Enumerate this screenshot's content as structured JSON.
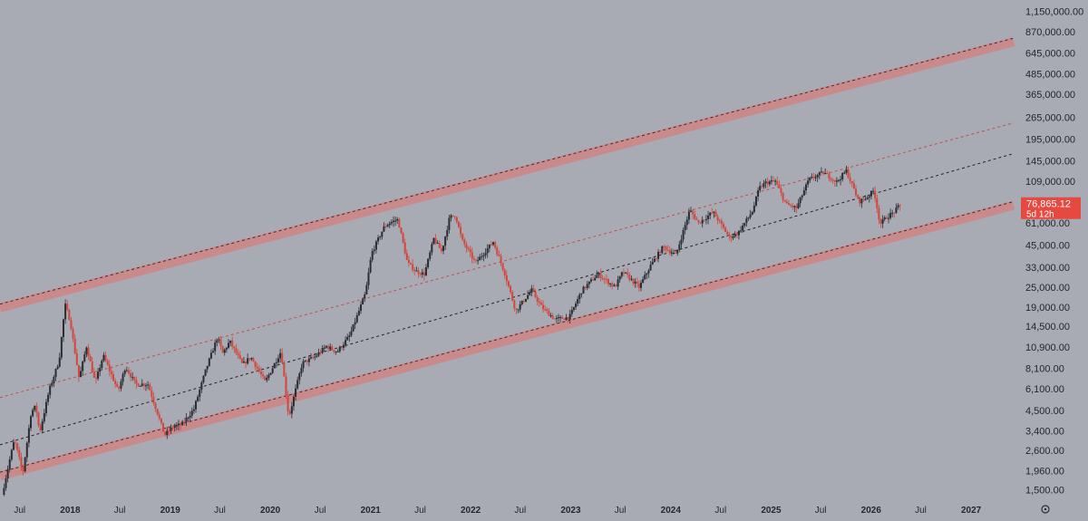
{
  "colors": {
    "background": "#a9abb4",
    "candle_up": "#2a2c33",
    "candle_down": "#d0473b",
    "band_fill": "#c98a8c",
    "band_dash": "#4a2a2a",
    "mid_red": "#c0504a",
    "mid_black": "#222222",
    "price_badge": "#e6493f"
  },
  "chart_data": {
    "type": "candlestick",
    "y_scale": "log",
    "ylim": [
      1400,
      1350000
    ],
    "x_range": [
      "2017-04-20",
      "2027-06-05"
    ],
    "y_ticks": [
      "1,150,000.00",
      "870,000.00",
      "645,000.00",
      "485,000.00",
      "365,000.00",
      "265,000.00",
      "195,000.00",
      "145,000.00",
      "109,000.00",
      "81,000.00",
      "61,000.00",
      "45,000.00",
      "33,000.00",
      "25,000.00",
      "19,000.00",
      "14,500.00",
      "10,900.00",
      "8,100.00",
      "6,100.00",
      "4,500.00",
      "3,400.00",
      "2,600.00",
      "1,960.00",
      "1,500.00"
    ],
    "x_ticks": [
      {
        "label": "Jul",
        "date": "2017-07-01",
        "year": false
      },
      {
        "label": "2018",
        "date": "2018-01-01",
        "year": true
      },
      {
        "label": "Jul",
        "date": "2018-07-01",
        "year": false
      },
      {
        "label": "2019",
        "date": "2019-01-01",
        "year": true
      },
      {
        "label": "Jul",
        "date": "2019-07-01",
        "year": false
      },
      {
        "label": "2020",
        "date": "2020-01-01",
        "year": true
      },
      {
        "label": "Jul",
        "date": "2020-07-01",
        "year": false
      },
      {
        "label": "2021",
        "date": "2021-01-01",
        "year": true
      },
      {
        "label": "Jul",
        "date": "2021-07-01",
        "year": false
      },
      {
        "label": "2022",
        "date": "2022-01-01",
        "year": true
      },
      {
        "label": "Jul",
        "date": "2022-07-01",
        "year": false
      },
      {
        "label": "2023",
        "date": "2023-01-01",
        "year": true
      },
      {
        "label": "Jul",
        "date": "2023-07-01",
        "year": false
      },
      {
        "label": "2024",
        "date": "2024-01-01",
        "year": true
      },
      {
        "label": "Jul",
        "date": "2024-07-01",
        "year": false
      },
      {
        "label": "2025",
        "date": "2025-01-01",
        "year": true
      },
      {
        "label": "Jul",
        "date": "2025-07-01",
        "year": false
      },
      {
        "label": "2026",
        "date": "2026-01-01",
        "year": true
      },
      {
        "label": "Jul",
        "date": "2026-07-01",
        "year": false
      },
      {
        "label": "2027",
        "date": "2027-01-01",
        "year": true
      }
    ],
    "price_path": [
      [
        "2017-05-01",
        1400
      ],
      [
        "2017-06-01",
        2400
      ],
      [
        "2017-06-15",
        3000
      ],
      [
        "2017-07-16",
        1900
      ],
      [
        "2017-08-15",
        4400
      ],
      [
        "2017-09-01",
        4800
      ],
      [
        "2017-09-15",
        3300
      ],
      [
        "2017-10-20",
        6000
      ],
      [
        "2017-11-25",
        9000
      ],
      [
        "2017-12-17",
        19700
      ],
      [
        "2018-01-05",
        15500
      ],
      [
        "2018-02-06",
        7000
      ],
      [
        "2018-03-05",
        11000
      ],
      [
        "2018-04-06",
        6600
      ],
      [
        "2018-05-05",
        9700
      ],
      [
        "2018-06-29",
        5900
      ],
      [
        "2018-07-25",
        8300
      ],
      [
        "2018-09-01",
        6500
      ],
      [
        "2018-10-15",
        6500
      ],
      [
        "2018-11-20",
        4300
      ],
      [
        "2018-12-15",
        3200
      ],
      [
        "2019-01-15",
        3600
      ],
      [
        "2019-02-15",
        3700
      ],
      [
        "2019-04-01",
        4600
      ],
      [
        "2019-05-15",
        8000
      ],
      [
        "2019-06-26",
        12500
      ],
      [
        "2019-07-15",
        10000
      ],
      [
        "2019-08-10",
        11800
      ],
      [
        "2019-09-25",
        8500
      ],
      [
        "2019-10-25",
        9500
      ],
      [
        "2019-12-17",
        6700
      ],
      [
        "2020-02-13",
        10300
      ],
      [
        "2020-03-12",
        4100
      ],
      [
        "2020-04-30",
        8700
      ],
      [
        "2020-06-15",
        9500
      ],
      [
        "2020-07-27",
        11000
      ],
      [
        "2020-09-05",
        10200
      ],
      [
        "2020-10-21",
        12800
      ],
      [
        "2020-12-17",
        23000
      ],
      [
        "2021-01-08",
        40000
      ],
      [
        "2021-02-21",
        57000
      ],
      [
        "2021-03-13",
        61000
      ],
      [
        "2021-04-14",
        64000
      ],
      [
        "2021-05-19",
        35000
      ],
      [
        "2021-06-22",
        31000
      ],
      [
        "2021-07-20",
        30000
      ],
      [
        "2021-08-23",
        49000
      ],
      [
        "2021-09-21",
        41000
      ],
      [
        "2021-10-20",
        66000
      ],
      [
        "2021-11-10",
        68000
      ],
      [
        "2021-12-04",
        48000
      ],
      [
        "2022-01-22",
        35000
      ],
      [
        "2022-03-28",
        47000
      ],
      [
        "2022-05-10",
        30000
      ],
      [
        "2022-06-18",
        18000
      ],
      [
        "2022-08-15",
        24000
      ],
      [
        "2022-09-20",
        19000
      ],
      [
        "2022-11-09",
        16000
      ],
      [
        "2022-12-31",
        16500
      ],
      [
        "2023-02-15",
        24000
      ],
      [
        "2023-04-14",
        30000
      ],
      [
        "2023-06-15",
        25000
      ],
      [
        "2023-07-14",
        31000
      ],
      [
        "2023-09-11",
        25000
      ],
      [
        "2023-10-24",
        34000
      ],
      [
        "2023-12-08",
        44000
      ],
      [
        "2024-01-23",
        39000
      ],
      [
        "2024-03-14",
        73000
      ],
      [
        "2024-04-15",
        61000
      ],
      [
        "2024-06-07",
        71000
      ],
      [
        "2024-08-05",
        50000
      ],
      [
        "2024-09-06",
        53000
      ],
      [
        "2024-10-29",
        72000
      ],
      [
        "2024-11-22",
        99000
      ],
      [
        "2024-12-17",
        107000
      ],
      [
        "2025-01-20",
        109000
      ],
      [
        "2025-02-28",
        79000
      ],
      [
        "2025-04-07",
        75000
      ],
      [
        "2025-05-22",
        111000
      ],
      [
        "2025-07-14",
        123000
      ],
      [
        "2025-09-01",
        108000
      ],
      [
        "2025-10-06",
        126000
      ],
      [
        "2025-11-21",
        82000
      ],
      [
        "2025-12-20",
        87000
      ],
      [
        "2026-01-15",
        96000
      ],
      [
        "2026-02-06",
        60000
      ],
      [
        "2026-03-01",
        66000
      ],
      [
        "2026-03-25",
        70000
      ],
      [
        "2026-04-16",
        76865
      ]
    ],
    "channel": {
      "upper": {
        "start": [
          "2017-04-20",
          18800
        ],
        "end": [
          "2027-06-05",
          755000
        ]
      },
      "lower": {
        "start": [
          "2017-04-20",
          1820
        ],
        "end": [
          "2027-06-05",
          78000
        ]
      },
      "mid_upper": {
        "start": [
          "2017-04-20",
          5400
        ],
        "end": [
          "2027-06-05",
          245000
        ]
      },
      "mid": {
        "start": [
          "2017-04-20",
          2800
        ],
        "end": [
          "2027-06-05",
          160000
        ]
      }
    },
    "last_price": "76,865.12",
    "countdown": "5d 12h"
  },
  "axis_icon": "settings-icon"
}
